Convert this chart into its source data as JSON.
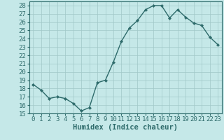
{
  "x": [
    0,
    1,
    2,
    3,
    4,
    5,
    6,
    7,
    8,
    9,
    10,
    11,
    12,
    13,
    14,
    15,
    16,
    17,
    18,
    19,
    20,
    21,
    22,
    23
  ],
  "y": [
    18.5,
    17.8,
    16.8,
    17.0,
    16.8,
    16.2,
    15.3,
    15.7,
    18.7,
    19.0,
    21.2,
    23.7,
    25.3,
    26.2,
    27.5,
    28.0,
    28.0,
    26.5,
    27.5,
    26.6,
    25.9,
    25.6,
    24.2,
    23.3
  ],
  "line_color": "#2e6b6b",
  "marker": "D",
  "marker_size": 2.2,
  "bg_color": "#c5e8e8",
  "grid_color": "#a0c8c8",
  "xlabel": "Humidex (Indice chaleur)",
  "ylim": [
    15,
    28.5
  ],
  "xlim": [
    -0.5,
    23.5
  ],
  "yticks": [
    15,
    16,
    17,
    18,
    19,
    20,
    21,
    22,
    23,
    24,
    25,
    26,
    27,
    28
  ],
  "xticks": [
    0,
    1,
    2,
    3,
    4,
    5,
    6,
    7,
    8,
    9,
    10,
    11,
    12,
    13,
    14,
    15,
    16,
    17,
    18,
    19,
    20,
    21,
    22,
    23
  ],
  "title_color": "#2e6b6b",
  "label_fontsize": 7.5,
  "tick_fontsize": 6.5,
  "linewidth": 1.0
}
